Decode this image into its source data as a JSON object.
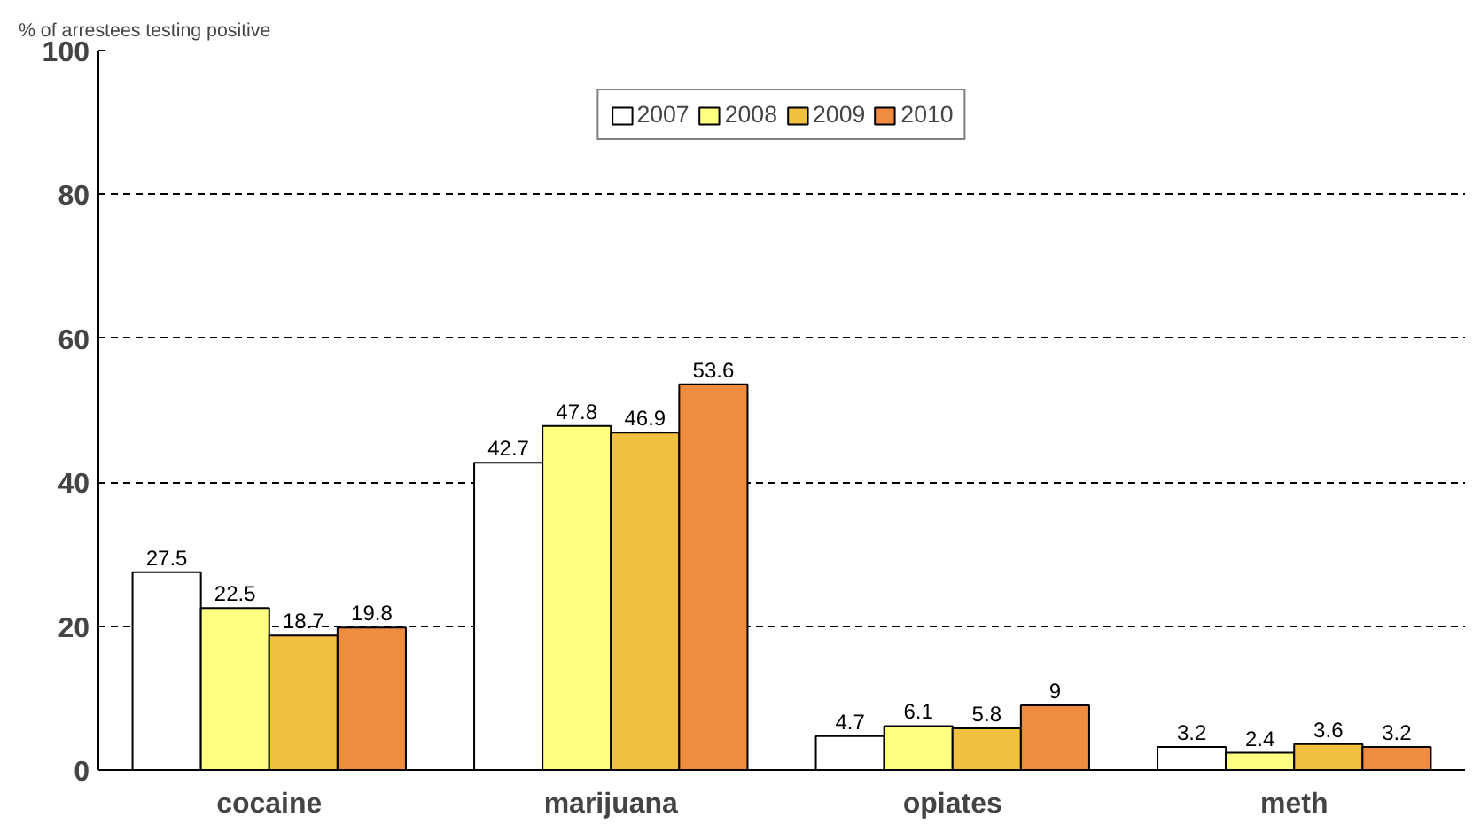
{
  "chart_data": {
    "type": "bar",
    "ylabel": "% of arrestees testing positive",
    "categories": [
      "cocaine",
      "marijuana",
      "opiates",
      "meth"
    ],
    "series": [
      {
        "name": "2007",
        "color": "#ffffff",
        "values": [
          27.5,
          42.7,
          4.7,
          3.2
        ]
      },
      {
        "name": "2008",
        "color": "#ffff80",
        "values": [
          22.5,
          47.8,
          6.1,
          2.4
        ]
      },
      {
        "name": "2009",
        "color": "#f0c040",
        "values": [
          18.7,
          46.9,
          5.8,
          3.6
        ]
      },
      {
        "name": "2010",
        "color": "#f08c40",
        "values": [
          19.8,
          53.6,
          9,
          3.2
        ]
      }
    ],
    "ylim": [
      0,
      100
    ],
    "yticks": [
      0,
      20,
      40,
      60,
      80,
      100
    ],
    "grid": "y",
    "legend": "top",
    "data_labels": true
  }
}
